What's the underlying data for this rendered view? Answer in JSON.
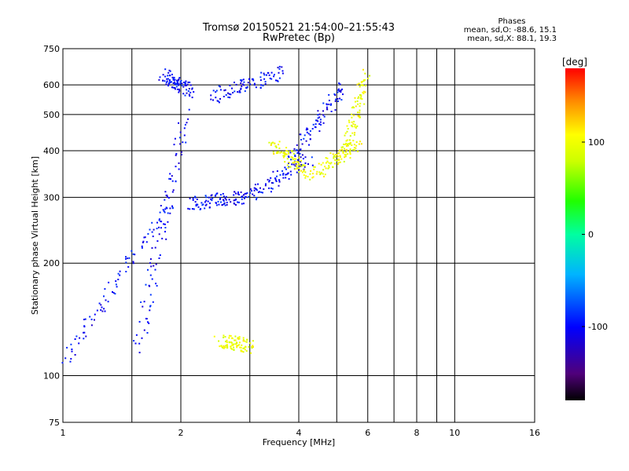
{
  "header": {
    "title_line1": "Tromsø 20150521 21:54:00–21:55:43",
    "title_line2": "RwPretec (Bp)",
    "phase_title": "Phases",
    "stat_o": "mean, sd,O: -88.6, 15.1",
    "stat_x": "mean, sd,X:  88.1, 19.3"
  },
  "colorbar": {
    "unit_label": "[deg]",
    "ticks": [
      "100",
      "0",
      "-100"
    ],
    "tick_values": [
      100,
      0,
      -100
    ],
    "range": [
      -180,
      180
    ]
  },
  "chart_data": {
    "type": "scatter",
    "xlabel": "Frequency [MHz]",
    "ylabel": "Stationary phase Virtual Height [km]",
    "x_scale": "log",
    "y_scale": "log",
    "xlim": [
      1,
      16
    ],
    "ylim": [
      75,
      750
    ],
    "x_ticks": [
      1,
      2,
      4,
      6,
      8,
      10,
      16
    ],
    "x_tick_labels": [
      "1",
      "2",
      "4",
      "6",
      "8",
      "10",
      "16"
    ],
    "y_ticks": [
      75,
      100,
      200,
      300,
      400,
      500,
      600,
      750
    ],
    "y_tick_labels": [
      "75",
      "100",
      "200",
      "300",
      "400",
      "500",
      "600",
      "750"
    ],
    "x_minor_gridlines": [
      1.5,
      3,
      5,
      7,
      9
    ],
    "grid": true,
    "series": [
      {
        "mode": "O",
        "phase_deg": -100,
        "traces": [
          {
            "f_min": 1.0,
            "f_max": 1.9,
            "h_start": 110,
            "h_end": 300
          },
          {
            "f_min": 1.55,
            "f_max": 2.05,
            "h_start": 120,
            "h_end": 500
          },
          {
            "f_min": 2.1,
            "f_max": 2.9,
            "h_start": 290,
            "h_end": 300
          },
          {
            "f_min": 2.9,
            "f_max": 4.2,
            "h_start": 300,
            "h_end": 380
          },
          {
            "f_min": 3.8,
            "f_max": 5.2,
            "h_start": 380,
            "h_end": 600
          },
          {
            "f_min": 1.8,
            "f_max": 2.1,
            "h_start": 640,
            "h_end": 580
          },
          {
            "f_min": 2.4,
            "f_max": 3.6,
            "h_start": 560,
            "h_end": 650
          }
        ]
      },
      {
        "mode": "X",
        "phase_deg": 100,
        "traces": [
          {
            "f_min": 3.4,
            "f_max": 4.2,
            "h_start": 420,
            "h_end": 350
          },
          {
            "f_min": 4.4,
            "f_max": 5.6,
            "h_start": 350,
            "h_end": 420
          },
          {
            "f_min": 5.2,
            "f_max": 5.9,
            "h_start": 400,
            "h_end": 640
          },
          {
            "f_min": 2.5,
            "f_max": 3.0,
            "h_start": 125,
            "h_end": 120
          }
        ]
      }
    ]
  }
}
